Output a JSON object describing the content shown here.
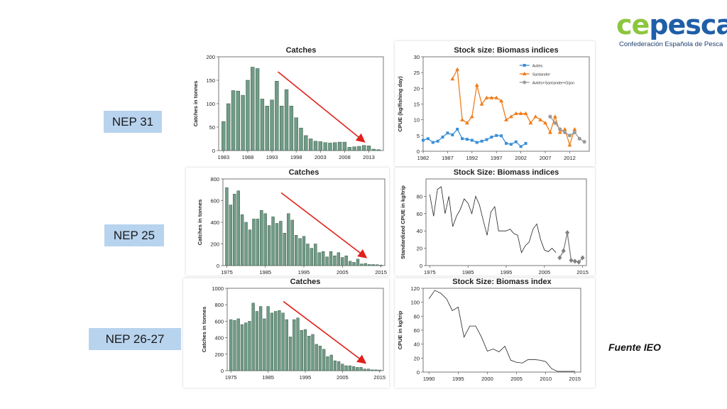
{
  "logo": {
    "word_ce": "ce",
    "word_pesca": "pesca",
    "subtitle": "Confederación Española de Pesca"
  },
  "labels": {
    "nep31": "NEP 31",
    "nep25": "NEP 25",
    "nep2627": "NEP 26-27"
  },
  "source": "Fuente IEO",
  "colors": {
    "bar_fill": "#6f9c86",
    "trend_arrow": "#e0211b",
    "label_box": "#b8d3ee",
    "aviles": "#3b8fd6",
    "santander": "#f07d1a",
    "combined": "#9a9a9a"
  },
  "chart_data": [
    {
      "id": "nep31-catches",
      "type": "bar",
      "title": "Catches",
      "ylabel": "Catches in tonnes",
      "xlabel": "",
      "ylim": [
        0,
        200
      ],
      "yticks": [
        0,
        50,
        100,
        150,
        200
      ],
      "x": [
        1983,
        1984,
        1985,
        1986,
        1987,
        1988,
        1989,
        1990,
        1991,
        1992,
        1993,
        1994,
        1995,
        1996,
        1997,
        1998,
        1999,
        2000,
        2001,
        2002,
        2003,
        2004,
        2005,
        2006,
        2007,
        2008,
        2009,
        2010,
        2011,
        2012,
        2013,
        2014,
        2015
      ],
      "values": [
        62,
        100,
        128,
        127,
        118,
        150,
        178,
        175,
        110,
        95,
        108,
        148,
        95,
        130,
        95,
        70,
        48,
        32,
        25,
        20,
        19,
        17,
        16,
        17,
        18,
        18,
        7,
        8,
        9,
        11,
        10,
        3,
        2
      ],
      "xticks": [
        1983,
        1988,
        1993,
        1998,
        2003,
        2008,
        2013
      ],
      "trend": "decreasing"
    },
    {
      "id": "nep31-biomass",
      "type": "line",
      "title": "Stock size: Biomass indices",
      "ylabel": "CPUE (kg/fishing day)",
      "xlabel": "",
      "ylim": [
        0,
        30
      ],
      "xlim": [
        1982,
        2016
      ],
      "yticks": [
        0,
        5,
        10,
        15,
        20,
        25,
        30
      ],
      "xticks": [
        1982,
        1987,
        1992,
        1997,
        2002,
        2007,
        2012
      ],
      "legend_position": "top-right",
      "series": [
        {
          "name": "Avilés",
          "color": "#3b8fd6",
          "marker": "square",
          "x": [
            1982,
            1983,
            1984,
            1985,
            1986,
            1987,
            1988,
            1989,
            1990,
            1991,
            1992,
            1993,
            1994,
            1995,
            1996,
            1997,
            1998,
            1999,
            2000,
            2001,
            2002,
            2003
          ],
          "y": [
            3.5,
            4.0,
            2.8,
            3.2,
            4.5,
            5.8,
            5.2,
            7.0,
            4.0,
            3.8,
            3.5,
            2.8,
            3.2,
            3.7,
            4.5,
            5.0,
            4.9,
            2.5,
            2.2,
            3.0,
            1.5,
            2.5
          ]
        },
        {
          "name": "Santander",
          "color": "#f07d1a",
          "marker": "triangle",
          "x": [
            1988,
            1989,
            1990,
            1991,
            1992,
            1993,
            1994,
            1995,
            1996,
            1997,
            1998,
            1999,
            2000,
            2001,
            2002,
            2003,
            2004,
            2005,
            2006,
            2007,
            2008,
            2009,
            2010,
            2011,
            2012,
            2013
          ],
          "y": [
            23,
            26,
            10,
            9,
            11,
            21,
            15,
            17,
            17,
            17,
            16,
            10,
            11,
            12,
            12,
            12,
            9,
            11,
            10,
            9,
            6,
            11,
            6,
            7,
            2,
            7
          ]
        },
        {
          "name": "Avilés+Santander+Gijon",
          "color": "#9a9a9a",
          "marker": "circle",
          "x": [
            2008,
            2009,
            2010,
            2011,
            2012,
            2013,
            2014,
            2015
          ],
          "y": [
            11,
            9,
            7,
            6,
            5,
            6,
            4,
            3
          ]
        }
      ]
    },
    {
      "id": "nep25-catches",
      "type": "bar",
      "title": "Catches",
      "ylabel": "Catches in tonnes",
      "xlabel": "",
      "ylim": [
        0,
        800
      ],
      "yticks": [
        0,
        200,
        400,
        600,
        800
      ],
      "x": [
        1975,
        1976,
        1977,
        1978,
        1979,
        1980,
        1981,
        1982,
        1983,
        1984,
        1985,
        1986,
        1987,
        1988,
        1989,
        1990,
        1991,
        1992,
        1993,
        1994,
        1995,
        1996,
        1997,
        1998,
        1999,
        2000,
        2001,
        2002,
        2003,
        2004,
        2005,
        2006,
        2007,
        2008,
        2009,
        2010,
        2011,
        2012,
        2013,
        2014,
        2015
      ],
      "values": [
        720,
        560,
        660,
        690,
        470,
        400,
        330,
        430,
        430,
        510,
        480,
        370,
        450,
        390,
        410,
        300,
        480,
        420,
        280,
        250,
        270,
        200,
        160,
        200,
        120,
        130,
        80,
        130,
        90,
        120,
        75,
        90,
        40,
        30,
        60,
        15,
        20,
        10,
        10,
        8,
        5
      ],
      "xticks": [
        1975,
        1985,
        1995,
        2005,
        2015
      ],
      "trend": "decreasing"
    },
    {
      "id": "nep25-biomass",
      "type": "line",
      "title": "Stock Size: Biomass indices",
      "ylabel": "Standardized CPUE in kg/trip",
      "xlabel": "",
      "ylim": [
        0,
        100
      ],
      "xlim": [
        1974,
        2016
      ],
      "yticks": [
        0,
        20,
        40,
        60,
        80
      ],
      "xticks": [
        1975,
        1985,
        1995,
        2005,
        2015
      ],
      "series": [
        {
          "name": "",
          "color": "#222222",
          "marker": "none",
          "x": [
            1975,
            1976,
            1977,
            1978,
            1979,
            1980,
            1981,
            1982,
            1983,
            1984,
            1985,
            1986,
            1987,
            1988,
            1989,
            1990,
            1991,
            1992,
            1993,
            1994,
            1995,
            1996,
            1997,
            1998,
            1999,
            2000,
            2001,
            2002,
            2003,
            2004,
            2005,
            2006,
            2007,
            2008
          ],
          "y": [
            82,
            57,
            88,
            91,
            60,
            80,
            45,
            57,
            65,
            77,
            72,
            60,
            80,
            70,
            52,
            35,
            62,
            68,
            40,
            40,
            40,
            42,
            37,
            35,
            15,
            23,
            27,
            42,
            48,
            30,
            18,
            16,
            20,
            15
          ]
        },
        {
          "name": "",
          "color": "#808080",
          "marker": "diamond",
          "x": [
            2009,
            2010,
            2011,
            2012,
            2013,
            2014,
            2015
          ],
          "y": [
            9,
            17,
            38,
            6,
            5,
            4,
            9
          ]
        }
      ]
    },
    {
      "id": "nep2627-catches",
      "type": "bar",
      "title": "Catches",
      "ylabel": "Catches in tonnes",
      "xlabel": "",
      "ylim": [
        0,
        1000
      ],
      "yticks": [
        0,
        200,
        400,
        600,
        800,
        1000
      ],
      "x": [
        1975,
        1976,
        1977,
        1978,
        1979,
        1980,
        1981,
        1982,
        1983,
        1984,
        1985,
        1986,
        1987,
        1988,
        1989,
        1990,
        1991,
        1992,
        1993,
        1994,
        1995,
        1996,
        1997,
        1998,
        1999,
        2000,
        2001,
        2002,
        2003,
        2004,
        2005,
        2006,
        2007,
        2008,
        2009,
        2010,
        2011,
        2012,
        2013,
        2014,
        2015
      ],
      "values": [
        620,
        610,
        630,
        560,
        580,
        600,
        820,
        720,
        780,
        630,
        780,
        700,
        720,
        730,
        700,
        620,
        410,
        620,
        640,
        490,
        500,
        420,
        440,
        320,
        300,
        260,
        170,
        190,
        120,
        110,
        80,
        60,
        60,
        50,
        40,
        40,
        20,
        20,
        10,
        10,
        8
      ],
      "xticks": [
        1975,
        1985,
        1995,
        2005,
        2015
      ],
      "trend": "decreasing"
    },
    {
      "id": "nep2627-biomass",
      "type": "line",
      "title": "Stock Size: Biomass index",
      "ylabel": "CPUE in kg/trip",
      "xlabel": "",
      "ylim": [
        0,
        120
      ],
      "xlim": [
        1989,
        2016
      ],
      "yticks": [
        0,
        20,
        40,
        60,
        80,
        100,
        120
      ],
      "xticks": [
        1990,
        1995,
        2000,
        2005,
        2010,
        2015
      ],
      "series": [
        {
          "name": "",
          "color": "#222222",
          "marker": "none",
          "x": [
            1990,
            1991,
            1992,
            1993,
            1994,
            1995,
            1996,
            1997,
            1998,
            1999,
            2000,
            2001,
            2002,
            2003,
            2004,
            2005,
            2006,
            2007,
            2008,
            2009,
            2010,
            2011,
            2012,
            2013,
            2014,
            2015
          ],
          "y": [
            105,
            117,
            113,
            105,
            88,
            93,
            50,
            66,
            66,
            50,
            30,
            33,
            29,
            37,
            17,
            14,
            13,
            18,
            18,
            17,
            15,
            5,
            1,
            1,
            1,
            1
          ]
        }
      ]
    }
  ]
}
